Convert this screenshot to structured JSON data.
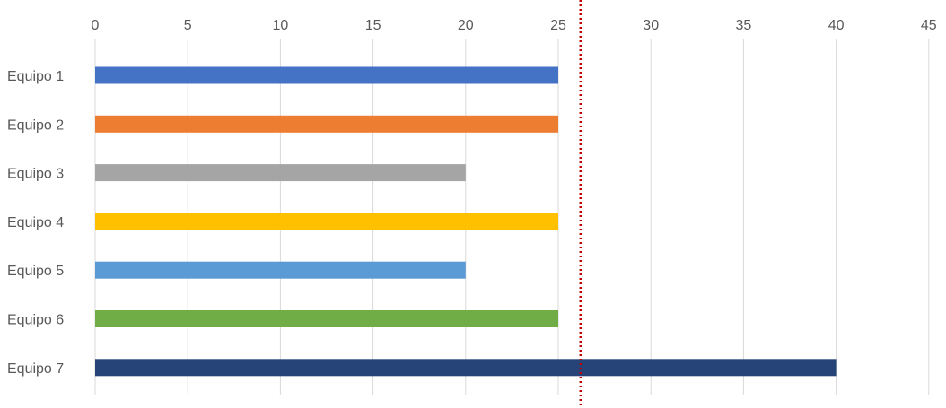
{
  "chart_data": {
    "type": "bar",
    "orientation": "horizontal",
    "title": "",
    "xlabel": "",
    "ylabel": "",
    "categories": [
      "Equipo 1",
      "Equipo 2",
      "Equipo 3",
      "Equipo 4",
      "Equipo 5",
      "Equipo 6",
      "Equipo 7"
    ],
    "values": [
      25,
      25,
      20,
      25,
      20,
      25,
      40
    ],
    "colors": [
      "#4472c4",
      "#ed7d31",
      "#a5a5a5",
      "#ffc000",
      "#5b9bd5",
      "#70ad47",
      "#264478"
    ],
    "xlim": [
      0,
      45
    ],
    "x_ticks": [
      0,
      5,
      10,
      15,
      20,
      25,
      30,
      35,
      40,
      45
    ],
    "x_axis_position": "top",
    "grid": "vertical",
    "legend": "none",
    "reference_line": {
      "value": 26.2,
      "style": "dotted",
      "color": "#c00000"
    }
  }
}
